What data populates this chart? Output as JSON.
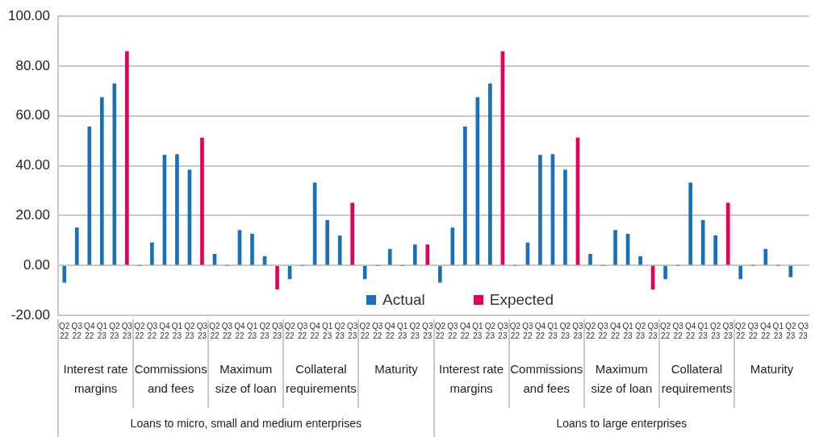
{
  "chart_data": {
    "type": "bar",
    "categories": [
      "Q2 22",
      "Q3 22",
      "Q4 22",
      "Q1 23",
      "Q2 23",
      "Q3 23",
      "Q2 22",
      "Q3 22",
      "Q4 22",
      "Q1 23",
      "Q2 23",
      "Q3 23",
      "Q2 22",
      "Q3 22",
      "Q4 22",
      "Q1 23",
      "Q2 23",
      "Q3 23",
      "Q2 22",
      "Q3 22",
      "Q4 22",
      "Q1 23",
      "Q2 23",
      "Q3 23",
      "Q2 22",
      "Q3 22",
      "Q4 22",
      "Q1 23",
      "Q2 23",
      "Q3 23",
      "Q2 22",
      "Q3 22",
      "Q4 22",
      "Q1 23",
      "Q2 23",
      "Q3 23",
      "Q2 22",
      "Q3 22",
      "Q4 22",
      "Q1 23",
      "Q2 23",
      "Q3 23",
      "Q2 22",
      "Q3 22",
      "Q4 22",
      "Q1 23",
      "Q2 23",
      "Q3 23",
      "Q2 22",
      "Q3 22",
      "Q4 22",
      "Q1 23",
      "Q2 23",
      "Q3 23",
      "Q2 22",
      "Q3 22",
      "Q4 22",
      "Q1 23",
      "Q2 23",
      "Q3 23"
    ],
    "series": [
      {
        "name": "Actual",
        "color": "#1a6fba",
        "values": [
          -6.8,
          15.1,
          55.6,
          67.4,
          72.9,
          null,
          0,
          9.1,
          44.3,
          44.5,
          38.3,
          null,
          4.5,
          0,
          14.1,
          12.6,
          3.6,
          null,
          -5.4,
          0,
          33.1,
          18.1,
          11.9,
          null,
          -5.4,
          0,
          6.5,
          0,
          8.3,
          null,
          -6.8,
          15.1,
          55.6,
          67.4,
          72.9,
          null,
          0,
          9.1,
          44.3,
          44.5,
          38.3,
          null,
          4.5,
          0,
          14.1,
          12.6,
          3.6,
          null,
          -5.4,
          0,
          33.1,
          18.1,
          11.9,
          null,
          -5.4,
          0,
          6.5,
          0,
          -4.6,
          null
        ]
      },
      {
        "name": "Expected",
        "color": "#e5005a",
        "values": [
          null,
          null,
          null,
          null,
          null,
          85.9,
          null,
          null,
          null,
          null,
          null,
          51.2,
          null,
          null,
          null,
          null,
          null,
          -9.5,
          null,
          null,
          null,
          null,
          null,
          25,
          null,
          null,
          null,
          null,
          null,
          8.3,
          null,
          null,
          null,
          null,
          null,
          85.9,
          null,
          null,
          null,
          null,
          null,
          51.2,
          null,
          null,
          null,
          null,
          null,
          -9.5,
          null,
          null,
          null,
          null,
          null,
          25,
          null,
          null,
          null,
          null,
          null,
          null
        ]
      }
    ],
    "ylim": [
      -20,
      100
    ],
    "yticks": [
      {
        "value": -20,
        "label": "-20.00"
      },
      {
        "value": 0,
        "label": "0.00"
      },
      {
        "value": 20,
        "label": "20.00"
      },
      {
        "value": 40,
        "label": "40.00"
      },
      {
        "value": 60,
        "label": "60.00"
      },
      {
        "value": 80,
        "label": "80.00"
      },
      {
        "value": 100,
        "label": "100.00"
      }
    ],
    "grid": "y",
    "legend": "bottom",
    "annotations": [
      "Interest rate margins",
      "Commissions and fees",
      "Maximum size of loan",
      "Collateral requirements",
      "Maturity",
      "Interest rate margins",
      "Commissions and fees",
      "Maximum size of loan",
      "Collateral requirements",
      "Maturity",
      "Loans to micro, small and medium enterprises",
      "Loans to large enterprises"
    ]
  }
}
